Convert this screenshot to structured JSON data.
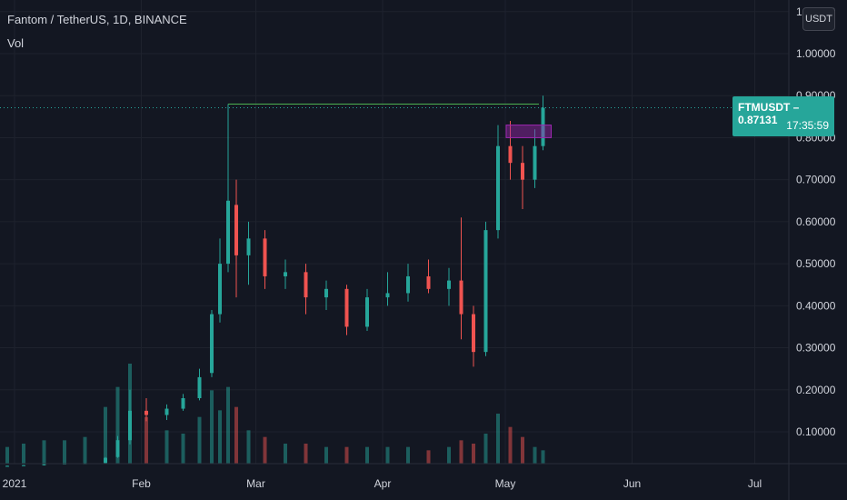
{
  "legend": {
    "title": "Fantom / TetherUS, 1D, BINANCE",
    "volume_label": "Vol"
  },
  "currency_button": "USDT",
  "price_tag": {
    "symbol": "FTMUSDT",
    "separator": "–",
    "price": "0.87131",
    "countdown": "17:35:59"
  },
  "colors": {
    "up": "#26a69a",
    "down": "#ef5350",
    "background": "#131722",
    "highlight_box": "#9c27b0",
    "horizontal_line": "#4caf50"
  },
  "chart_data": {
    "type": "candlestick",
    "title": "Fantom / TetherUS, 1D, BINANCE",
    "x_tick_labels": [
      "2021",
      "Feb",
      "Mar",
      "Apr",
      "May",
      "Jun",
      "Jul"
    ],
    "y_tick_labels": [
      "0.10000",
      "0.20000",
      "0.30000",
      "0.40000",
      "0.50000",
      "0.60000",
      "0.70000",
      "0.80000",
      "0.90000",
      "1.00000",
      "1.10000"
    ],
    "ylim": [
      0.0,
      1.12
    ],
    "last_price": 0.87131,
    "annotations": [
      {
        "type": "horizontal_line",
        "value": 0.88,
        "from": "2021-02-24",
        "to": "2021-05-11"
      },
      {
        "type": "box",
        "from": "2021-05-03",
        "to": "2021-05-14",
        "top": 0.83,
        "bottom": 0.8
      }
    ],
    "series": [
      {
        "date": "2021-01-01",
        "open": 0.0189,
        "high": 0.0195,
        "low": 0.0182,
        "close": 0.019,
        "volume": 0.05
      },
      {
        "date": "2021-01-05",
        "open": 0.0201,
        "high": 0.0212,
        "low": 0.0195,
        "close": 0.0205,
        "volume": 0.06
      },
      {
        "date": "2021-01-10",
        "open": 0.0205,
        "high": 0.0235,
        "low": 0.02,
        "close": 0.023,
        "volume": 0.07
      },
      {
        "date": "2021-01-15",
        "open": 0.0235,
        "high": 0.025,
        "low": 0.0225,
        "close": 0.0245,
        "volume": 0.07
      },
      {
        "date": "2021-01-20",
        "open": 0.0245,
        "high": 0.026,
        "low": 0.024,
        "close": 0.025,
        "volume": 0.08
      },
      {
        "date": "2021-01-25",
        "open": 0.026,
        "high": 0.04,
        "low": 0.025,
        "close": 0.038,
        "volume": 0.17
      },
      {
        "date": "2021-01-28",
        "open": 0.04,
        "high": 0.09,
        "low": 0.038,
        "close": 0.08,
        "volume": 0.23
      },
      {
        "date": "2021-01-31",
        "open": 0.08,
        "high": 0.2,
        "low": 0.07,
        "close": 0.15,
        "volume": 0.3
      },
      {
        "date": "2021-02-04",
        "open": 0.15,
        "high": 0.18,
        "low": 0.125,
        "close": 0.14,
        "volume": 0.14
      },
      {
        "date": "2021-02-09",
        "open": 0.14,
        "high": 0.165,
        "low": 0.128,
        "close": 0.155,
        "volume": 0.1
      },
      {
        "date": "2021-02-13",
        "open": 0.155,
        "high": 0.19,
        "low": 0.15,
        "close": 0.18,
        "volume": 0.09
      },
      {
        "date": "2021-02-17",
        "open": 0.18,
        "high": 0.25,
        "low": 0.175,
        "close": 0.23,
        "volume": 0.14
      },
      {
        "date": "2021-02-20",
        "open": 0.24,
        "high": 0.39,
        "low": 0.23,
        "close": 0.38,
        "volume": 0.22
      },
      {
        "date": "2021-02-22",
        "open": 0.38,
        "high": 0.56,
        "low": 0.36,
        "close": 0.5,
        "volume": 0.16
      },
      {
        "date": "2021-02-24",
        "open": 0.5,
        "high": 0.88,
        "low": 0.48,
        "close": 0.65,
        "volume": 0.23
      },
      {
        "date": "2021-02-26",
        "open": 0.64,
        "high": 0.7,
        "low": 0.42,
        "close": 0.52,
        "volume": 0.17
      },
      {
        "date": "2021-03-01",
        "open": 0.52,
        "high": 0.6,
        "low": 0.45,
        "close": 0.56,
        "volume": 0.1
      },
      {
        "date": "2021-03-05",
        "open": 0.56,
        "high": 0.58,
        "low": 0.44,
        "close": 0.47,
        "volume": 0.08
      },
      {
        "date": "2021-03-10",
        "open": 0.47,
        "high": 0.51,
        "low": 0.44,
        "close": 0.48,
        "volume": 0.06
      },
      {
        "date": "2021-03-15",
        "open": 0.48,
        "high": 0.5,
        "low": 0.38,
        "close": 0.42,
        "volume": 0.06
      },
      {
        "date": "2021-03-20",
        "open": 0.42,
        "high": 0.46,
        "low": 0.39,
        "close": 0.44,
        "volume": 0.05
      },
      {
        "date": "2021-03-25",
        "open": 0.44,
        "high": 0.45,
        "low": 0.33,
        "close": 0.35,
        "volume": 0.05
      },
      {
        "date": "2021-03-30",
        "open": 0.35,
        "high": 0.44,
        "low": 0.34,
        "close": 0.42,
        "volume": 0.05
      },
      {
        "date": "2021-04-04",
        "open": 0.42,
        "high": 0.48,
        "low": 0.4,
        "close": 0.43,
        "volume": 0.05
      },
      {
        "date": "2021-04-09",
        "open": 0.43,
        "high": 0.5,
        "low": 0.41,
        "close": 0.47,
        "volume": 0.05
      },
      {
        "date": "2021-04-14",
        "open": 0.47,
        "high": 0.51,
        "low": 0.43,
        "close": 0.44,
        "volume": 0.04
      },
      {
        "date": "2021-04-19",
        "open": 0.44,
        "high": 0.49,
        "low": 0.4,
        "close": 0.46,
        "volume": 0.05
      },
      {
        "date": "2021-04-22",
        "open": 0.46,
        "high": 0.61,
        "low": 0.32,
        "close": 0.38,
        "volume": 0.07
      },
      {
        "date": "2021-04-25",
        "open": 0.38,
        "high": 0.4,
        "low": 0.255,
        "close": 0.29,
        "volume": 0.06
      },
      {
        "date": "2021-04-28",
        "open": 0.29,
        "high": 0.6,
        "low": 0.28,
        "close": 0.58,
        "volume": 0.09
      },
      {
        "date": "2021-05-01",
        "open": 0.58,
        "high": 0.83,
        "low": 0.56,
        "close": 0.78,
        "volume": 0.15
      },
      {
        "date": "2021-05-04",
        "open": 0.78,
        "high": 0.84,
        "low": 0.7,
        "close": 0.74,
        "volume": 0.11
      },
      {
        "date": "2021-05-07",
        "open": 0.74,
        "high": 0.78,
        "low": 0.63,
        "close": 0.7,
        "volume": 0.08
      },
      {
        "date": "2021-05-10",
        "open": 0.7,
        "high": 0.82,
        "low": 0.68,
        "close": 0.78,
        "volume": 0.05
      },
      {
        "date": "2021-05-12",
        "open": 0.78,
        "high": 0.9,
        "low": 0.77,
        "close": 0.87131,
        "volume": 0.04
      }
    ]
  }
}
